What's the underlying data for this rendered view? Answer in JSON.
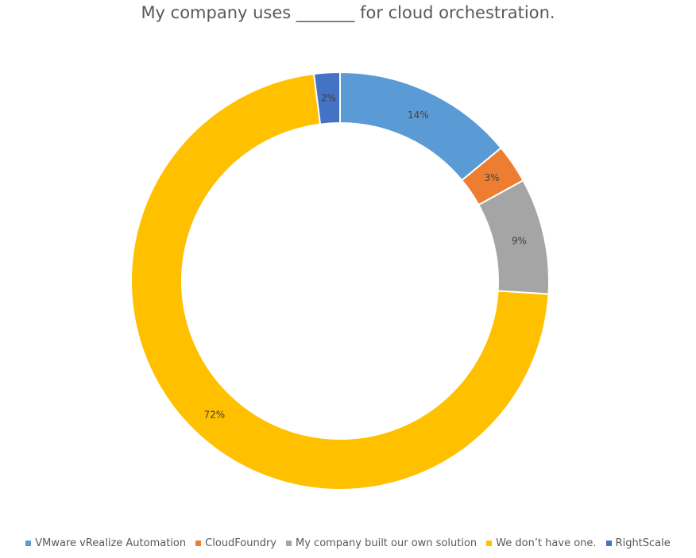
{
  "chart_data": {
    "type": "pie",
    "style": "donut",
    "title": "My company uses _______ for cloud orchestration.",
    "categories": [
      "VMware vRealize Automation",
      "CloudFoundry",
      "My company built our own solution",
      "We don’t have one.",
      "RightScale"
    ],
    "values": [
      14,
      3,
      9,
      72,
      2
    ],
    "labels": [
      "14%",
      "3%",
      "9%",
      "72%",
      "2%"
    ],
    "colors": [
      "#5B9BD5",
      "#ED7D31",
      "#A5A5A5",
      "#FFC000",
      "#4472C4"
    ],
    "legend_position": "bottom",
    "start_angle": "12 o'clock",
    "direction": "clockwise"
  }
}
